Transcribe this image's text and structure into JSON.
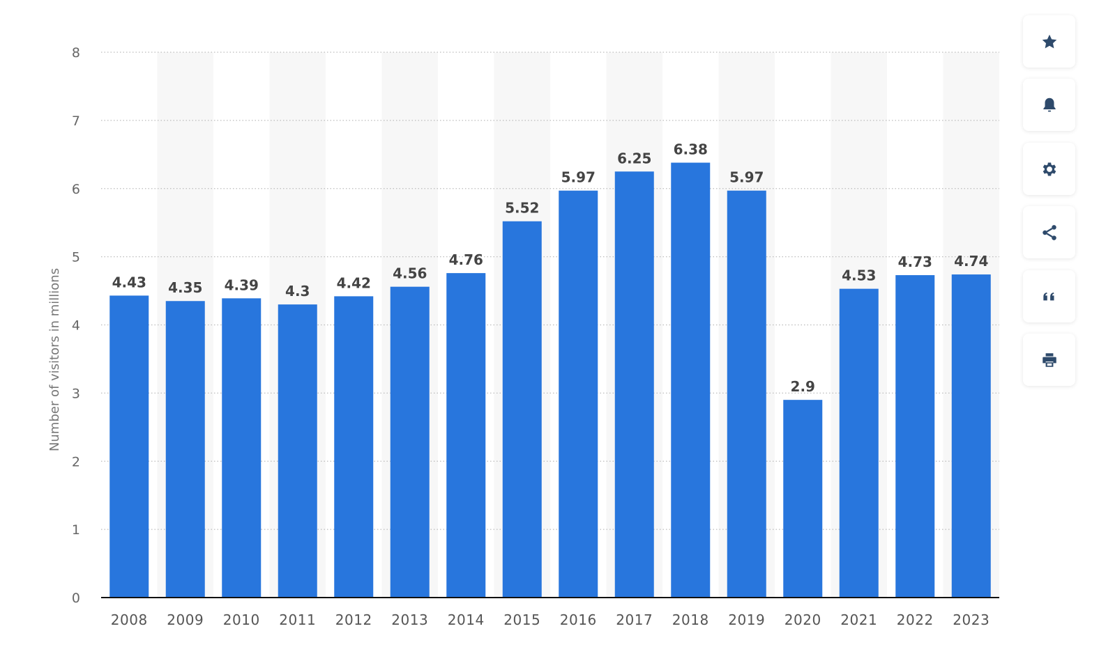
{
  "chart_data": {
    "type": "bar",
    "categories": [
      "2008",
      "2009",
      "2010",
      "2011",
      "2012",
      "2013",
      "2014",
      "2015",
      "2016",
      "2017",
      "2018",
      "2019",
      "2020",
      "2021",
      "2022",
      "2023"
    ],
    "values": [
      4.43,
      4.35,
      4.39,
      4.3,
      4.42,
      4.56,
      4.76,
      5.52,
      5.97,
      6.25,
      6.38,
      5.97,
      2.9,
      4.53,
      4.73,
      4.74
    ],
    "value_labels": [
      "4.43",
      "4.35",
      "4.39",
      "4.3",
      "4.42",
      "4.56",
      "4.76",
      "5.52",
      "5.97",
      "6.25",
      "6.38",
      "5.97",
      "2.9",
      "4.53",
      "4.73",
      "4.74"
    ],
    "title": "",
    "xlabel": "",
    "ylabel": "Number of visitors in millions",
    "ylim": [
      0,
      8
    ],
    "yticks": [
      "0",
      "1",
      "2",
      "3",
      "4",
      "5",
      "6",
      "7",
      "8"
    ],
    "grid": "horizontal dotted",
    "bar_color": "#2876dd",
    "alternating_column_shading": "#f7f7f7"
  },
  "toolbar": {
    "buttons": [
      {
        "name": "favorite-button",
        "icon": "star-icon"
      },
      {
        "name": "notification-button",
        "icon": "bell-icon"
      },
      {
        "name": "settings-button",
        "icon": "gear-icon"
      },
      {
        "name": "share-button",
        "icon": "share-icon"
      },
      {
        "name": "citation-button",
        "icon": "quote-icon"
      },
      {
        "name": "print-button",
        "icon": "printer-icon"
      }
    ],
    "icon_color": "#2e4a6b"
  }
}
